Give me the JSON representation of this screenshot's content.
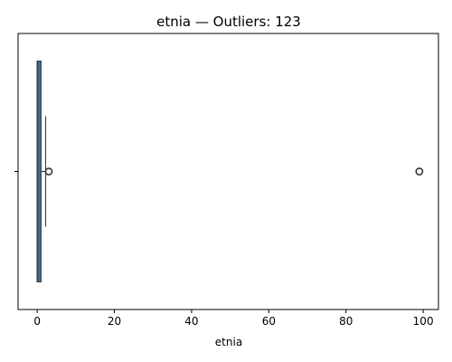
{
  "chart_data": {
    "type": "boxplot",
    "orientation": "horizontal",
    "title": "etnia — Outliers: 123",
    "xlabel": "etnia",
    "ylabel": "",
    "xlim": [
      -4.95,
      103.95
    ],
    "xticks": [
      0,
      20,
      40,
      60,
      80,
      100
    ],
    "yticks": [
      ""
    ],
    "grid": false,
    "box": {
      "whisker_low": 0,
      "q1": 0,
      "median": 0,
      "q3": 1,
      "whisker_high": 2.2
    },
    "outliers": [
      3,
      99
    ],
    "colors": {
      "box_fill": "#3a6f9c",
      "box_edge": "#333333",
      "outlier_edge": "#333333"
    }
  }
}
